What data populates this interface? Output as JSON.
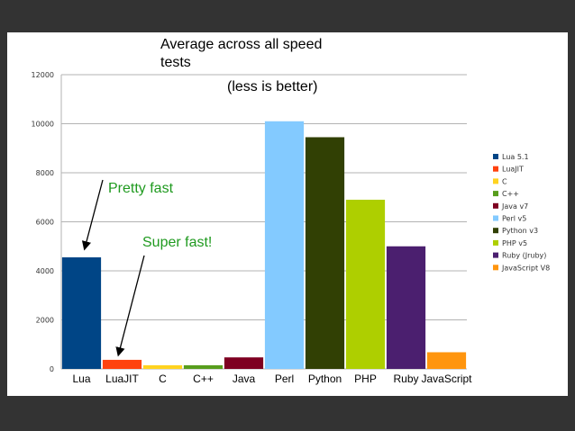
{
  "chart_data": {
    "type": "bar",
    "title": "Average across all speed tests",
    "title_lines": [
      "Average across all speed",
      "tests"
    ],
    "subtitle": "(less is better)",
    "categories": [
      "Lua",
      "LuaJIT",
      "C",
      "C++",
      "Java",
      "Perl",
      "Python",
      "PHP",
      "Ruby",
      "JavaScript"
    ],
    "values": [
      4550,
      370,
      150,
      150,
      470,
      10100,
      9450,
      6900,
      5000,
      680
    ],
    "legend": [
      "Lua 5.1",
      "LuaJIT",
      "C",
      "C++",
      "Java v7",
      "Perl v5",
      "Python v3",
      "PHP v5",
      "Ruby (Jruby)",
      "JavaScript V8"
    ],
    "colors": [
      "#004586",
      "#ff420e",
      "#ffd320",
      "#579d1c",
      "#7e0021",
      "#83caff",
      "#314004",
      "#aecf00",
      "#4b1f6f",
      "#ff950e"
    ],
    "ylim": [
      0,
      12000
    ],
    "yticks": [
      "0",
      "2000",
      "4000",
      "6000",
      "8000",
      "10000",
      "12000"
    ],
    "grid": true,
    "legend_position": "right",
    "annotations": [
      {
        "text": "Pretty fast",
        "points_to": "Lua"
      },
      {
        "text": "Super fast!",
        "points_to": "LuaJIT"
      }
    ]
  }
}
